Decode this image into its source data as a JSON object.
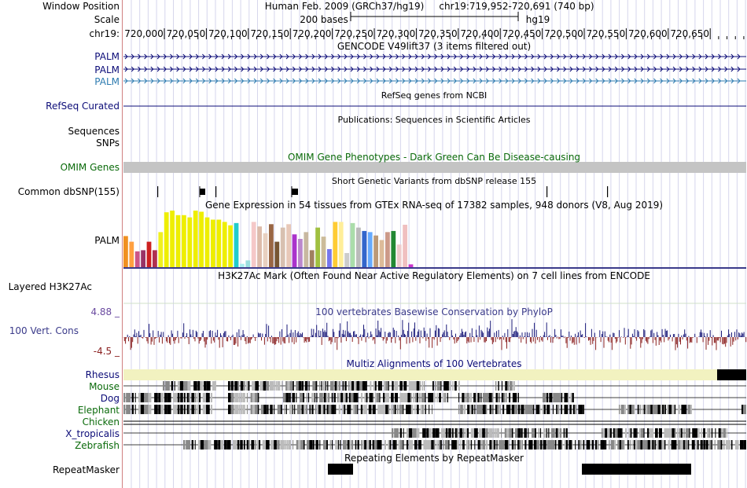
{
  "header": {
    "window_position_label": "Window Position",
    "scale_label": "Scale",
    "chrom_label": "chr19:",
    "assembly_text": "Human Feb. 2009 (GRCh37/hg19)",
    "position_text": "chr19:719,952-720,691 (740 bp)",
    "scale_text": "200 bases",
    "db_text": "hg19",
    "ruler_ticks": [
      "720,000",
      "720,050",
      "720,100",
      "720,150",
      "720,200",
      "720,250",
      "720,300",
      "720,350",
      "720,400",
      "720,450",
      "720,500",
      "720,550",
      "720,600",
      "720,650"
    ]
  },
  "tracks": {
    "gencode": {
      "title": "GENCODE V49lift37 (3 items filtered out)",
      "items": [
        "PALM",
        "PALM",
        "PALM"
      ],
      "colors": [
        "#0c0c78",
        "#0c0c78",
        "#2d7bb0"
      ]
    },
    "refseq": {
      "title": "RefSeq genes from NCBI",
      "label": "RefSeq Curated",
      "color": "#0c0c78"
    },
    "publications": {
      "title": "Publications: Sequences in Scientific Articles",
      "labels": [
        "Sequences",
        "SNPs"
      ]
    },
    "omim": {
      "title": "OMIM Gene Phenotypes - Dark Green Can Be Disease-causing",
      "label": "OMIM Genes",
      "color": "#0a6a0a"
    },
    "dbsnp": {
      "title": "Short Genetic Variants from dbSNP release 155",
      "label": "Common dbSNP(155)"
    },
    "gtex": {
      "title": "Gene Expression in 54 tissues from GTEx RNA-seq of 17382 samples, 948 donors (V8, Aug 2019)",
      "label": "PALM",
      "bars": [
        {
          "value": 0.55,
          "color": "#f09020"
        },
        {
          "value": 0.45,
          "color": "#ffa040"
        },
        {
          "value": 0.28,
          "color": "#cc5588"
        },
        {
          "value": 0.3,
          "color": "#993366"
        },
        {
          "value": 0.45,
          "color": "#cc2020"
        },
        {
          "value": 0.3,
          "color": "#b03050"
        },
        {
          "value": 0.62,
          "color": "#f0f020"
        },
        {
          "value": 0.97,
          "color": "#eeee00"
        },
        {
          "value": 1.0,
          "color": "#eeee00"
        },
        {
          "value": 0.92,
          "color": "#eeee00"
        },
        {
          "value": 0.92,
          "color": "#eeee00"
        },
        {
          "value": 0.88,
          "color": "#eeee00"
        },
        {
          "value": 1.0,
          "color": "#eeee00"
        },
        {
          "value": 0.98,
          "color": "#eeee00"
        },
        {
          "value": 0.88,
          "color": "#eeee00"
        },
        {
          "value": 0.84,
          "color": "#eeee00"
        },
        {
          "value": 0.84,
          "color": "#eeee00"
        },
        {
          "value": 0.8,
          "color": "#eeee00"
        },
        {
          "value": 0.74,
          "color": "#eeee00"
        },
        {
          "value": 0.78,
          "color": "#22cccc"
        },
        {
          "value": 0.06,
          "color": "#aaeeee"
        },
        {
          "value": 0.12,
          "color": "#99dddd"
        },
        {
          "value": 0.8,
          "color": "#f5c8c8"
        },
        {
          "value": 0.72,
          "color": "#ddbbaa"
        },
        {
          "value": 0.6,
          "color": "#e8d0c0"
        },
        {
          "value": 0.76,
          "color": "#996644"
        },
        {
          "value": 0.45,
          "color": "#775533"
        },
        {
          "value": 0.7,
          "color": "#d8c0b0"
        },
        {
          "value": 0.76,
          "color": "#e8c8b8"
        },
        {
          "value": 0.58,
          "color": "#aa33cc"
        },
        {
          "value": 0.5,
          "color": "#bb88cc"
        },
        {
          "value": 0.62,
          "color": "#c8b8a0"
        },
        {
          "value": 0.3,
          "color": "#a08060"
        },
        {
          "value": 0.7,
          "color": "#a0c040"
        },
        {
          "value": 0.54,
          "color": "#ccbb99"
        },
        {
          "value": 0.32,
          "color": "#7777ee"
        },
        {
          "value": 0.8,
          "color": "#ffcc33"
        },
        {
          "value": 0.8,
          "color": "#ffee99"
        },
        {
          "value": 0.25,
          "color": "#cccccc"
        },
        {
          "value": 0.78,
          "color": "#aaddaa"
        },
        {
          "value": 0.7,
          "color": "#bbbbbb"
        },
        {
          "value": 0.64,
          "color": "#3366cc"
        },
        {
          "value": 0.62,
          "color": "#66aaff"
        },
        {
          "value": 0.56,
          "color": "#bb9977"
        },
        {
          "value": 0.48,
          "color": "#ddbb99"
        },
        {
          "value": 0.62,
          "color": "#cc9988"
        },
        {
          "value": 0.64,
          "color": "#228833"
        },
        {
          "value": 0.4,
          "color": "#eecccc"
        },
        {
          "value": 0.75,
          "color": "#f0c0c0"
        },
        {
          "value": 0.05,
          "color": "#cc33cc"
        }
      ]
    },
    "h3k27ac": {
      "title": "H3K27Ac Mark (Often Found Near Active Regulatory Elements) on 7 cell lines from ENCODE",
      "label": "Layered H3K27Ac"
    },
    "phylop": {
      "title": "100 vertebrates Basewise Conservation by PhyloP",
      "label": "100 Vert. Cons",
      "max_label": "4.88 _",
      "min_label": "-4.5 _",
      "range": [
        -4.5,
        4.88
      ]
    },
    "multiz": {
      "title": "Multiz Alignments of 100 Vertebrates",
      "species": [
        "Rhesus",
        "Mouse",
        "Dog",
        "Elephant",
        "Chicken",
        "X_tropicalis",
        "Zebrafish"
      ]
    },
    "repeatmasker": {
      "title": "Repeating Elements by RepeatMasker",
      "label": "RepeatMasker"
    }
  },
  "colors": {
    "blue_label": "#0c0c78",
    "green_label": "#0a6a0a",
    "gray_label": "#3a3a8a",
    "phylop_pos": "#1a1a7a",
    "phylop_neg": "#8a2020",
    "omim_bar": "#c4c4c4",
    "rhesus_bar": "#f2f2c0"
  }
}
